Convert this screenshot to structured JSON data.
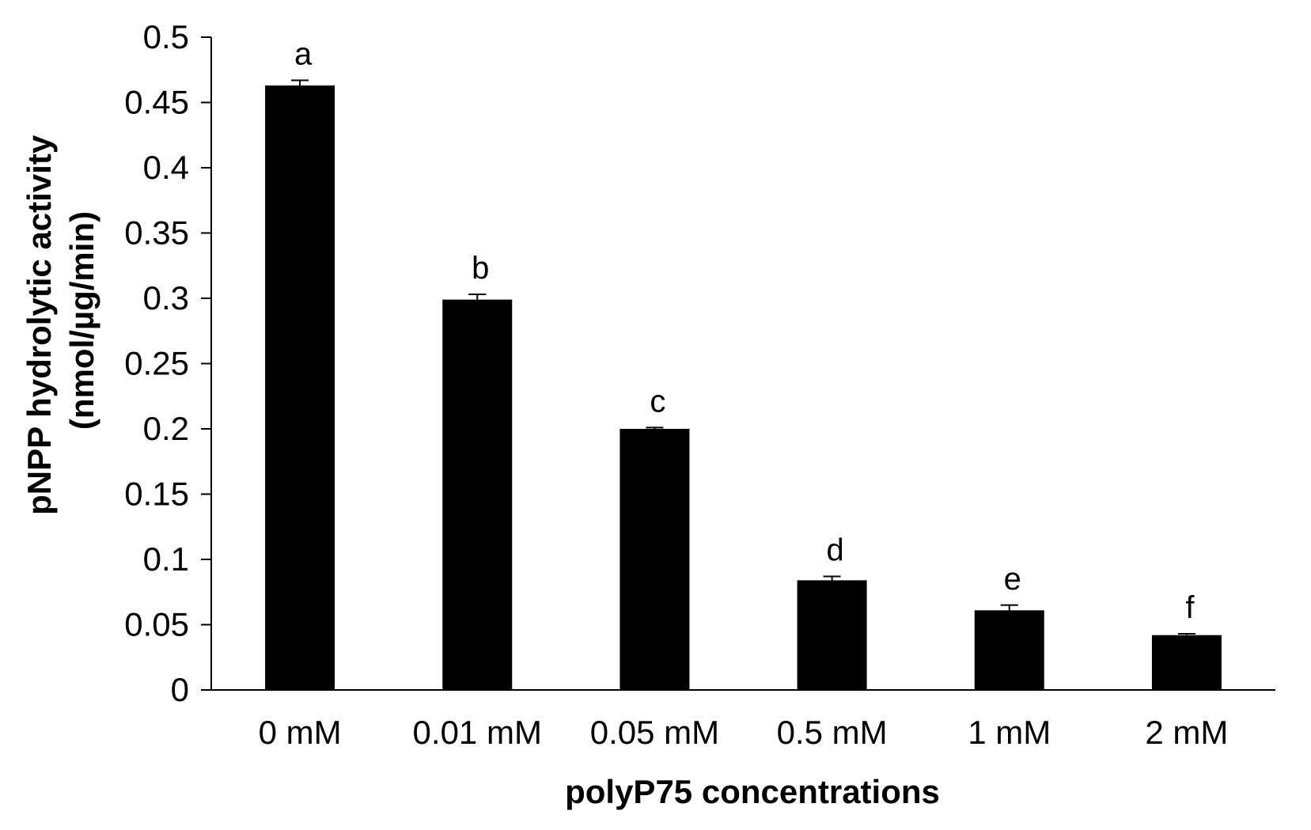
{
  "chart_data": {
    "type": "bar",
    "title": "",
    "xlabel": "polyP75 concentrations",
    "ylabel_line1": "pNPP hydrolytic  activity",
    "ylabel_line2": "(nmol/µg/min)",
    "ylim": [
      0,
      0.5
    ],
    "yticks": [
      0,
      0.05,
      0.1,
      0.15,
      0.2,
      0.25,
      0.3,
      0.35,
      0.4,
      0.45,
      0.5
    ],
    "ytick_labels": [
      "0",
      "0.05",
      "0.1",
      "0.15",
      "0.2",
      "0.25",
      "0.3",
      "0.35",
      "0.4",
      "0.45",
      "0.5"
    ],
    "categories": [
      "0 mM",
      "0.01 mM",
      "0.05 mM",
      "0.5 mM",
      "1 mM",
      "2 mM"
    ],
    "values": [
      0.463,
      0.299,
      0.2,
      0.084,
      0.061,
      0.042
    ],
    "errors": [
      0.004,
      0.004,
      0.001,
      0.003,
      0.004,
      0.001
    ],
    "significance_letters": [
      "a",
      "b",
      "c",
      "d",
      "e",
      "f"
    ],
    "bar_color": "#000000",
    "grid": false,
    "legend": "none"
  }
}
